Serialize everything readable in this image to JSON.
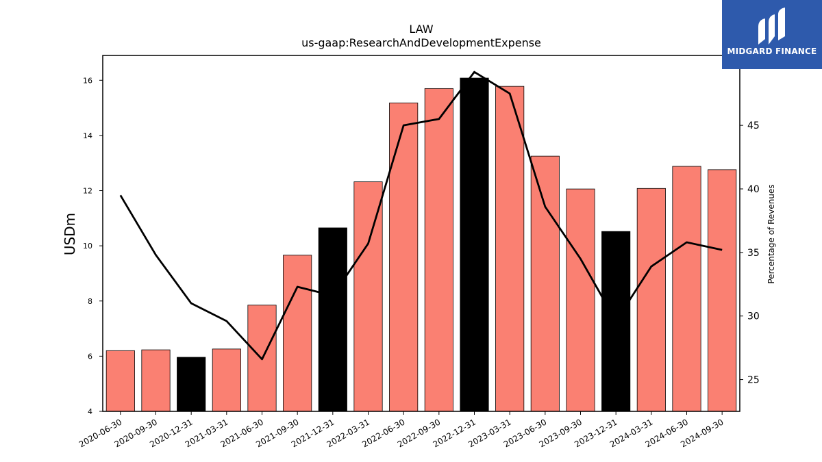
{
  "logo": {
    "text": "MIDGARD FINANCE",
    "icon": "midgard-logo-icon",
    "color": "#2e5aac"
  },
  "chart_data": {
    "type": "bar",
    "title": "LAW",
    "subtitle": "us-gaap:ResearchAndDevelopmentExpense",
    "ylabel": "USDm",
    "y2label": "Percentage of Revenues",
    "ylim": [
      4,
      16.9
    ],
    "y2lim": [
      22.5,
      50.5
    ],
    "yticks": [
      4,
      6,
      8,
      10,
      12,
      14,
      16
    ],
    "y2ticks": [
      25,
      30,
      35,
      40,
      45
    ],
    "categories": [
      "2020-06-30",
      "2020-09-30",
      "2020-12-31",
      "2021-03-31",
      "2021-06-30",
      "2021-09-30",
      "2021-12-31",
      "2022-03-31",
      "2022-06-30",
      "2022-09-30",
      "2022-12-31",
      "2023-03-31",
      "2023-06-30",
      "2023-09-30",
      "2023-12-31",
      "2024-03-31",
      "2024-06-30",
      "2024-09-30"
    ],
    "series": [
      {
        "values": [
          6.2,
          6.23,
          5.96,
          6.26,
          7.85,
          9.66,
          10.65,
          12.32,
          15.18,
          15.7,
          16.08,
          15.78,
          13.25,
          12.06,
          10.52,
          12.08,
          12.88,
          12.76
        ]
      },
      {
        "axis": "right",
        "values": [
          39.5,
          34.8,
          31.0,
          29.6,
          26.6,
          32.3,
          31.6,
          35.7,
          45.0,
          45.5,
          49.2,
          47.5,
          38.6,
          34.5,
          29.6,
          33.9,
          35.8,
          35.2
        ]
      }
    ],
    "colors": {
      "bar": "#fa8072",
      "bar_highlight": "#000000",
      "line": "#000000"
    },
    "highlight_categories": [
      "2020-12-31",
      "2021-12-31",
      "2022-12-31",
      "2023-12-31"
    ]
  }
}
